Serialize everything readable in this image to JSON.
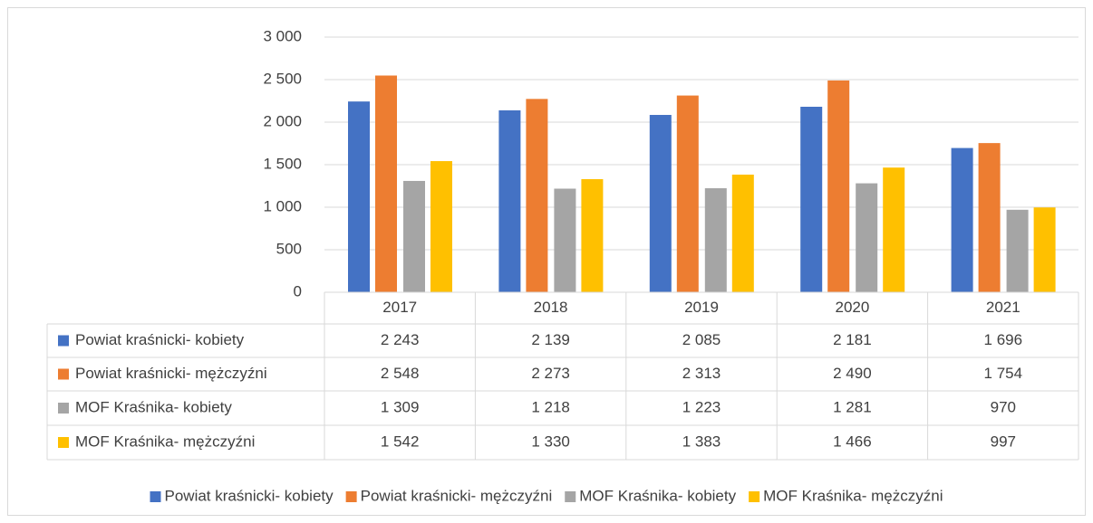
{
  "chart_data": {
    "type": "bar",
    "categories": [
      "2017",
      "2018",
      "2019",
      "2020",
      "2021"
    ],
    "series": [
      {
        "name": "Powiat kraśnicki- kobiety",
        "color": "#4472c4",
        "values": [
          2243,
          2139,
          2085,
          2181,
          1696
        ],
        "value_labels": [
          "2 243",
          "2 139",
          "2 085",
          "2 181",
          "1 696"
        ]
      },
      {
        "name": "Powiat kraśnicki- mężczyźni",
        "color": "#ed7d31",
        "values": [
          2548,
          2273,
          2313,
          2490,
          1754
        ],
        "value_labels": [
          "2 548",
          "2 273",
          "2 313",
          "2 490",
          "1 754"
        ]
      },
      {
        "name": "MOF Kraśnika- kobiety",
        "color": "#a5a5a5",
        "values": [
          1309,
          1218,
          1223,
          1281,
          970
        ],
        "value_labels": [
          "1 309",
          "1 218",
          "1 223",
          "1 281",
          "970"
        ]
      },
      {
        "name": "MOF Kraśnika- mężczyźni",
        "color": "#ffc000",
        "values": [
          1542,
          1330,
          1383,
          1466,
          997
        ],
        "value_labels": [
          "1 542",
          "1 330",
          "1 383",
          "1 466",
          "997"
        ]
      }
    ],
    "ylim": [
      0,
      3000
    ],
    "yticks": [
      0,
      500,
      {
        "value": 1000,
        "label": "1 000"
      },
      {
        "value": 1500,
        "label": "1 500"
      },
      {
        "value": 2000,
        "label": "2 000"
      },
      {
        "value": 2500,
        "label": "2 500"
      },
      {
        "value": 3000,
        "label": "3 000"
      }
    ],
    "grid": true,
    "legend": "bottom"
  }
}
